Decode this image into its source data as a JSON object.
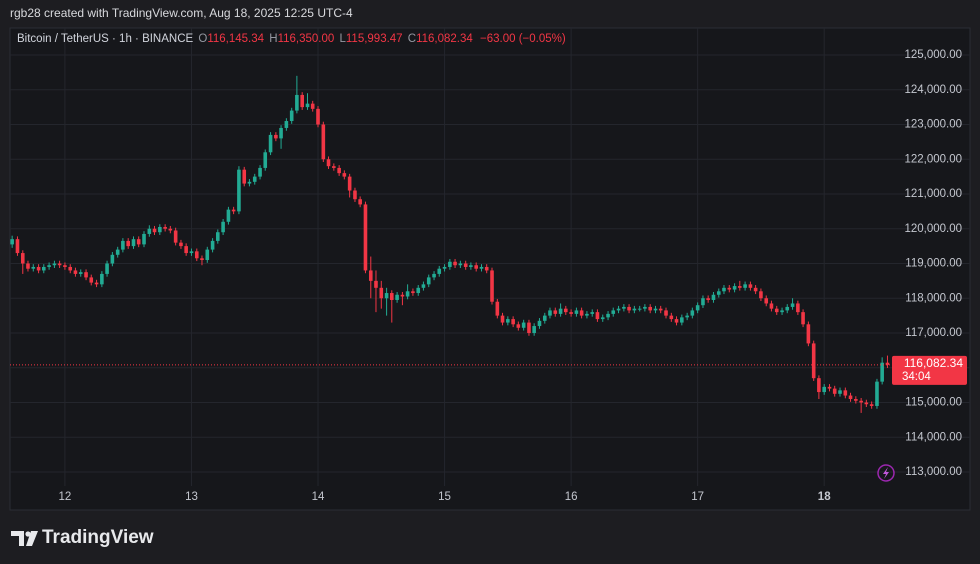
{
  "header": {
    "credit": "rgb28 created with TradingView.com, Aug 18, 2025 12:25 UTC-4"
  },
  "chart_data": {
    "type": "candlestick",
    "symbol": "Bitcoin / TetherUS · 1h · BINANCE",
    "ohlc_legend": {
      "o": "O",
      "open": "116,145.34",
      "h": "H",
      "high": "116,350.00",
      "l": "L",
      "low": "115,993.47",
      "c": "C",
      "close": "116,082.34",
      "change": "−63.00 (−0.05%)"
    },
    "x": [
      11.583,
      11.625,
      11.667,
      11.708,
      11.75,
      11.792,
      11.833,
      11.875,
      11.917,
      11.958,
      12,
      12.042,
      12.083,
      12.125,
      12.167,
      12.208,
      12.25,
      12.292,
      12.333,
      12.375,
      12.417,
      12.458,
      12.5,
      12.542,
      12.583,
      12.625,
      12.667,
      12.708,
      12.75,
      12.792,
      12.833,
      12.875,
      12.917,
      12.958,
      13,
      13.042,
      13.083,
      13.125,
      13.167,
      13.208,
      13.25,
      13.292,
      13.333,
      13.375,
      13.417,
      13.458,
      13.5,
      13.542,
      13.583,
      13.625,
      13.667,
      13.708,
      13.75,
      13.792,
      13.833,
      13.875,
      13.917,
      13.958,
      14,
      14.042,
      14.083,
      14.125,
      14.167,
      14.208,
      14.25,
      14.292,
      14.333,
      14.375,
      14.417,
      14.458,
      14.5,
      14.542,
      14.583,
      14.625,
      14.667,
      14.708,
      14.75,
      14.792,
      14.833,
      14.875,
      14.917,
      14.958,
      15,
      15.042,
      15.083,
      15.125,
      15.167,
      15.208,
      15.25,
      15.292,
      15.333,
      15.375,
      15.417,
      15.458,
      15.5,
      15.542,
      15.583,
      15.625,
      15.667,
      15.708,
      15.75,
      15.792,
      15.833,
      15.875,
      15.917,
      15.958,
      16,
      16.042,
      16.083,
      16.125,
      16.167,
      16.208,
      16.25,
      16.292,
      16.333,
      16.375,
      16.417,
      16.458,
      16.5,
      16.542,
      16.583,
      16.625,
      16.667,
      16.708,
      16.75,
      16.792,
      16.833,
      16.875,
      16.917,
      16.958,
      17,
      17.042,
      17.083,
      17.125,
      17.167,
      17.208,
      17.25,
      17.292,
      17.333,
      17.375,
      17.417,
      17.458,
      17.5,
      17.542,
      17.583,
      17.625,
      17.667,
      17.708,
      17.75,
      17.792,
      17.833,
      17.875,
      17.917,
      17.958,
      18,
      18.042,
      18.083,
      18.125,
      18.167,
      18.208,
      18.25,
      18.292,
      18.333,
      18.375,
      18.417,
      18.458,
      18.5
    ],
    "open": [
      119550,
      119700,
      119300,
      119000,
      118850,
      118900,
      118800,
      118900,
      118950,
      119000,
      118950,
      118900,
      118800,
      118700,
      118750,
      118600,
      118450,
      118400,
      118700,
      119000,
      119250,
      119400,
      119650,
      119500,
      119700,
      119550,
      119850,
      120000,
      119900,
      120050,
      120000,
      119950,
      119600,
      119500,
      119300,
      119350,
      119150,
      119100,
      119400,
      119650,
      119900,
      120200,
      120550,
      120500,
      121700,
      121300,
      121350,
      121500,
      121750,
      122200,
      122700,
      122600,
      122900,
      123100,
      123400,
      123850,
      123500,
      123600,
      123450,
      123000,
      122000,
      121800,
      121750,
      121600,
      121500,
      121100,
      120850,
      120700,
      118800,
      118500,
      118300,
      118000,
      118150,
      117950,
      118100,
      118050,
      118200,
      118150,
      118300,
      118400,
      118600,
      118700,
      118850,
      118900,
      119050,
      118950,
      119000,
      118900,
      118950,
      118850,
      118900,
      118800,
      117900,
      117500,
      117300,
      117400,
      117250,
      117150,
      117300,
      117000,
      117200,
      117350,
      117500,
      117650,
      117550,
      117700,
      117600,
      117550,
      117650,
      117500,
      117550,
      117600,
      117400,
      117450,
      117550,
      117650,
      117700,
      117750,
      117650,
      117700,
      117700,
      117750,
      117650,
      117700,
      117650,
      117500,
      117400,
      117300,
      117450,
      117500,
      117650,
      117800,
      118000,
      117950,
      118100,
      118200,
      118300,
      118250,
      118350,
      118300,
      118400,
      118300,
      118200,
      118000,
      117850,
      117700,
      117600,
      117650,
      117750,
      117850,
      117600,
      117250,
      116700,
      115700,
      115300,
      115450,
      115400,
      115250,
      115350,
      115200,
      115100,
      115050,
      115000,
      114950,
      114900,
      115600,
      116145.34
    ],
    "high": [
      119800,
      119780,
      119380,
      119080,
      118980,
      118980,
      118980,
      119030,
      119080,
      119080,
      119030,
      118980,
      118880,
      118830,
      118830,
      118680,
      118530,
      118780,
      119080,
      119330,
      119480,
      119730,
      119730,
      119780,
      119780,
      119930,
      120100,
      120080,
      120130,
      120130,
      120080,
      120030,
      119680,
      119580,
      119430,
      119430,
      119230,
      119480,
      119730,
      119980,
      120280,
      120630,
      120630,
      121800,
      121780,
      121430,
      121580,
      121830,
      122280,
      122780,
      122780,
      122980,
      123180,
      123480,
      124400,
      123930,
      123900,
      123680,
      123530,
      123080,
      122080,
      121880,
      121830,
      121680,
      121580,
      121180,
      120930,
      120780,
      119200,
      118800,
      118500,
      118300,
      118230,
      118180,
      118180,
      118400,
      118280,
      118380,
      118480,
      118680,
      118780,
      118930,
      118980,
      119130,
      119130,
      119080,
      119080,
      119030,
      119030,
      118980,
      118980,
      118880,
      117980,
      117580,
      117480,
      117480,
      117330,
      117380,
      117380,
      117280,
      117430,
      117580,
      117730,
      117730,
      117850,
      117780,
      117680,
      117730,
      117730,
      117630,
      117680,
      117680,
      117530,
      117630,
      117730,
      117780,
      117830,
      117830,
      117780,
      117780,
      117830,
      117830,
      117780,
      117780,
      117730,
      117580,
      117480,
      117530,
      117580,
      117730,
      117880,
      118080,
      118080,
      118180,
      118280,
      118380,
      118380,
      118430,
      118500,
      118480,
      118480,
      118380,
      118280,
      118080,
      117930,
      117780,
      117730,
      117830,
      118000,
      117930,
      117680,
      117330,
      116780,
      115780,
      115530,
      115530,
      115480,
      115430,
      115430,
      115280,
      115180,
      115130,
      115080,
      115030,
      115680,
      116300,
      116350
    ],
    "low": [
      119450,
      119220,
      118700,
      118770,
      118770,
      118720,
      118720,
      118820,
      118870,
      118870,
      118820,
      118720,
      118620,
      118620,
      118520,
      118370,
      118320,
      118320,
      118620,
      118920,
      119170,
      119320,
      119420,
      119420,
      119470,
      119470,
      119770,
      119820,
      119820,
      119920,
      119870,
      119520,
      119420,
      119220,
      119220,
      119070,
      118950,
      119020,
      119320,
      119570,
      119820,
      120120,
      120420,
      120420,
      121220,
      121220,
      121270,
      121420,
      121670,
      122120,
      122520,
      122300,
      122820,
      123020,
      123320,
      123420,
      123420,
      123370,
      122920,
      121920,
      121720,
      121670,
      121520,
      121420,
      120900,
      120770,
      120620,
      118720,
      118000,
      117600,
      117700,
      117500,
      117300,
      117870,
      117800,
      117970,
      118070,
      118070,
      118220,
      118320,
      118520,
      118620,
      118770,
      118820,
      118870,
      118870,
      118820,
      118820,
      118770,
      118770,
      118720,
      117820,
      117420,
      117220,
      117220,
      117170,
      117070,
      117070,
      116920,
      116920,
      117120,
      117270,
      117420,
      117470,
      117470,
      117520,
      117470,
      117470,
      117420,
      117420,
      117470,
      117320,
      117320,
      117370,
      117470,
      117570,
      117620,
      117570,
      117570,
      117620,
      117620,
      117570,
      117570,
      117570,
      117420,
      117320,
      117220,
      117220,
      117370,
      117420,
      117570,
      117720,
      117870,
      117870,
      118020,
      118120,
      118170,
      118170,
      118220,
      118220,
      118220,
      118120,
      117920,
      117770,
      117620,
      117520,
      117520,
      117570,
      117670,
      117520,
      117170,
      116620,
      115620,
      115100,
      115220,
      115320,
      115170,
      115170,
      115120,
      115020,
      114970,
      114700,
      114870,
      114820,
      114820,
      115520,
      115993.47
    ],
    "close": [
      119700,
      119300,
      119000,
      118850,
      118900,
      118800,
      118900,
      118950,
      119000,
      118950,
      118900,
      118800,
      118700,
      118750,
      118600,
      118450,
      118400,
      118700,
      119000,
      119250,
      119400,
      119650,
      119500,
      119700,
      119550,
      119850,
      120000,
      119900,
      120050,
      120000,
      119950,
      119600,
      119500,
      119300,
      119350,
      119150,
      119100,
      119400,
      119650,
      119900,
      120200,
      120550,
      120500,
      121700,
      121300,
      121350,
      121500,
      121750,
      122200,
      122700,
      122600,
      122900,
      123100,
      123400,
      123850,
      123500,
      123600,
      123450,
      123000,
      122000,
      121800,
      121750,
      121600,
      121500,
      121100,
      120850,
      120700,
      118800,
      118500,
      118300,
      118000,
      118150,
      117950,
      118100,
      118050,
      118200,
      118150,
      118300,
      118400,
      118600,
      118700,
      118850,
      118900,
      119050,
      118950,
      119000,
      118900,
      118950,
      118850,
      118900,
      118800,
      117900,
      117500,
      117300,
      117400,
      117250,
      117150,
      117300,
      117000,
      117200,
      117350,
      117500,
      117650,
      117550,
      117700,
      117600,
      117550,
      117650,
      117500,
      117550,
      117600,
      117400,
      117450,
      117550,
      117650,
      117700,
      117750,
      117650,
      117700,
      117700,
      117750,
      117650,
      117700,
      117650,
      117500,
      117400,
      117300,
      117450,
      117500,
      117650,
      117800,
      118000,
      117950,
      118100,
      118200,
      118300,
      118250,
      118350,
      118300,
      118400,
      118300,
      118200,
      118000,
      117850,
      117700,
      117600,
      117650,
      117750,
      117850,
      117600,
      117250,
      116700,
      115700,
      115300,
      115450,
      115400,
      115250,
      115350,
      115200,
      115100,
      115050,
      115000,
      114950,
      114900,
      115600,
      116145.34,
      116082.34
    ],
    "up_color": "#22ab94",
    "down_color": "#f23645",
    "xlim": [
      11.566,
      18.52
    ],
    "xticks": [
      12,
      13,
      14,
      15,
      16,
      17,
      18
    ],
    "ylim": [
      111964,
      125719
    ],
    "yticks": [
      {
        "value": 113000,
        "label": "113,000.00"
      },
      {
        "value": 114000,
        "label": "114,000.00"
      },
      {
        "value": 115000,
        "label": "115,000.00"
      },
      {
        "value": 116000,
        "label": "116,000.00"
      },
      {
        "value": 117000,
        "label": "117,000.00"
      },
      {
        "value": 118000,
        "label": "118,000.00"
      },
      {
        "value": 119000,
        "label": "119,000.00"
      },
      {
        "value": 120000,
        "label": "120,000.00"
      },
      {
        "value": 121000,
        "label": "121,000.00"
      },
      {
        "value": 122000,
        "label": "122,000.00"
      },
      {
        "value": 123000,
        "label": "123,000.00"
      },
      {
        "value": 124000,
        "label": "124,000.00"
      },
      {
        "value": 125000,
        "label": "125,000.00"
      }
    ],
    "grid": true,
    "last_price": {
      "label": "116,082.34",
      "countdown": "34:04"
    }
  },
  "footer": {
    "logo": "TradingView"
  }
}
